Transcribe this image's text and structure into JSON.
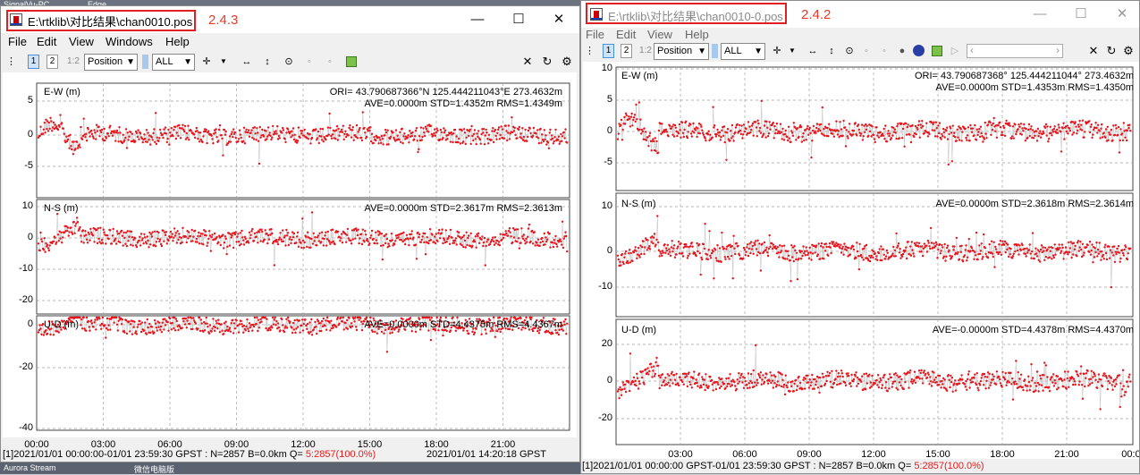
{
  "desktop": {
    "top_items": [
      "SignalVu-PC",
      "Edge"
    ],
    "bottom_items": [
      "Aurora Stream",
      "微信电脑版"
    ]
  },
  "menu": [
    "File",
    "Edit",
    "View",
    "Windows",
    "Help"
  ],
  "menu2": [
    "File",
    "Edit",
    "View",
    "Help"
  ],
  "toolbar": {
    "position": "Position",
    "sat": "ALL",
    "p1": "1",
    "p2": "2",
    "p12": "1:2"
  },
  "colors": {
    "series": "#e8141c",
    "grid": "#9a9a9a"
  },
  "left": {
    "title": "E:\\rtklib\\对比结果\\chan0010.pos",
    "version": "2.4.3",
    "panels": [
      {
        "label": "E-W (m)",
        "info1": "ORI= 43.790687366°N  125.444211043°E 273.4632m",
        "info2": "AVE=0.0000m STD=1.4352m RMS=1.4349m",
        "yticks": [
          "5",
          "0",
          "-5"
        ]
      },
      {
        "label": "N-S (m)",
        "info1": "AVE=0.0000m STD=2.3617m RMS=2.3613m",
        "info2": "",
        "yticks": [
          "10",
          "0",
          "-10",
          "-20"
        ]
      },
      {
        "label": "U-D (m)",
        "info1": "AVE=0.0000m STD=4.4375m RMS=4.4367m",
        "info2": "",
        "yticks": [
          "0",
          "-20",
          "-40"
        ]
      }
    ],
    "xticks": [
      "00:00",
      "03:00",
      "06:00",
      "09:00",
      "12:00",
      "15:00",
      "18:00",
      "21:00"
    ],
    "status_main": "[1]2021/01/01 00:00:00-01/01 23:59:30 GPST : N=2857 B=0.0km Q= ",
    "status_q": "5:2857(100.0%)",
    "status_time": "2021/01/01 14:20:18 GPST"
  },
  "right": {
    "title": "E:\\rtklib\\对比结果\\chan0010-0.pos",
    "version": "2.4.2",
    "panels": [
      {
        "label": "E-W (m)",
        "info1": "ORI= 43.790687368°  125.444211044° 273.4632m",
        "info2": "AVE=0.0000m STD=1.4353m RMS=1.4350m",
        "yticks": [
          "10",
          "5",
          "0",
          "-5"
        ]
      },
      {
        "label": "N-S (m)",
        "info1": "AVE=0.0000m STD=2.3618m RMS=2.3614m",
        "info2": "",
        "yticks": [
          "10",
          "0",
          "-10"
        ]
      },
      {
        "label": "U-D (m)",
        "info1": "AVE=-0.0000m STD=4.4378m RMS=4.4370m",
        "info2": "",
        "yticks": [
          "20",
          "0",
          "-20"
        ]
      }
    ],
    "xticks": [
      "03:00",
      "06:00",
      "09:00",
      "12:00",
      "15:00",
      "18:00",
      "21:00",
      "00:0"
    ],
    "status_main": "[1]2021/01/01 00:00:00 GPST-01/01 23:59:30 GPST : N=2857 B=0.0km Q= ",
    "status_q": "5:2857(100.0%)"
  }
}
